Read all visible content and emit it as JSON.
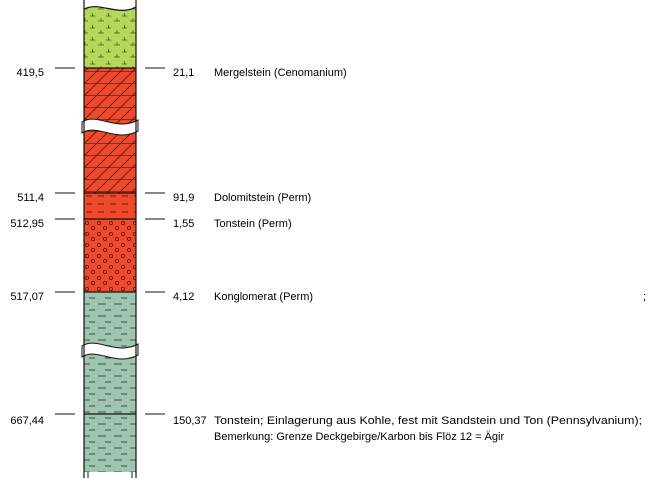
{
  "layers": [
    {
      "depth": "419,5",
      "thickness": "21,1",
      "description": [
        "Mergelstein (Cenomanium)"
      ],
      "lithology": "marl",
      "color": "#b5d85a"
    },
    {
      "depth": "511,4",
      "thickness": "91,9",
      "description": [
        "Dolomitstein (Perm)"
      ],
      "lithology": "dolomite",
      "color": "#f04a2e"
    },
    {
      "depth": "512,95",
      "thickness": "1,55",
      "description": [
        "Tonstein (Perm)"
      ],
      "lithology": "claystone",
      "color": "#f04a2e"
    },
    {
      "depth": "517,07",
      "thickness": "4,12",
      "description": [
        "Konglomerat (Perm)"
      ],
      "lithology": "conglomerate",
      "color": "#f04a2e"
    },
    {
      "depth": "667,44",
      "thickness": "150,37",
      "description": [
        "Tonstein; Einlagerung aus Kohle, fest mit Sandstein und Ton (Pennsylvanium);",
        "Bemerkung: Grenze Deckgebirge/Karbon bis Flöz 12 = Ägir"
      ],
      "lithology": "claystone",
      "color": "#9fc4b2"
    }
  ],
  "stray_mark": ";",
  "colors": {
    "marl": "#b5d85a",
    "perm": "#f04a2e",
    "carbon": "#9fc4b2",
    "line": "#111111"
  }
}
